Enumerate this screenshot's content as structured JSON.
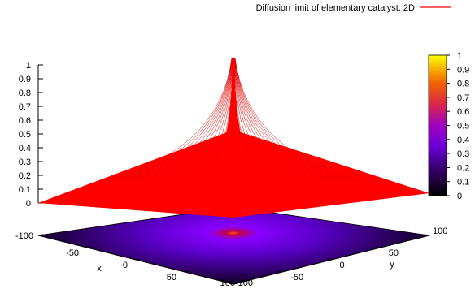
{
  "chart_data": {
    "type": "surface3d",
    "title": "",
    "legend_label": "Diffusion limit of elementary catalyst: 2D",
    "legend_placement": "top-right",
    "series": [
      {
        "name": "Diffusion limit of elementary catalyst: 2D",
        "color": "#ff0000"
      }
    ],
    "xlabel": "x",
    "ylabel": "y",
    "zlabel": "",
    "xlim": [
      -100,
      100
    ],
    "ylim": [
      -100,
      100
    ],
    "zlim": [
      0,
      1
    ],
    "x_ticks": [
      "-100",
      "-50",
      "0",
      "50",
      "100"
    ],
    "y_ticks": [
      "-100",
      "-50",
      "0",
      "50",
      "100"
    ],
    "z_ticks": [
      "0",
      "0.1",
      "0.2",
      "0.3",
      "0.4",
      "0.5",
      "0.6",
      "0.7",
      "0.8",
      "0.9",
      "1"
    ],
    "colorbar_ticks": [
      "0",
      "0.1",
      "0.2",
      "0.3",
      "0.4",
      "0.5",
      "0.6",
      "0.7",
      "0.8",
      "0.9",
      "1"
    ],
    "colorbar_range": [
      0,
      1
    ],
    "peak": {
      "x": 0,
      "y": 0,
      "z": 1
    },
    "base_plane_value": 0,
    "colormap": "gnuplot-pm3d (black-purple-red-yellow)",
    "base_heatmap": true,
    "grid": false
  }
}
